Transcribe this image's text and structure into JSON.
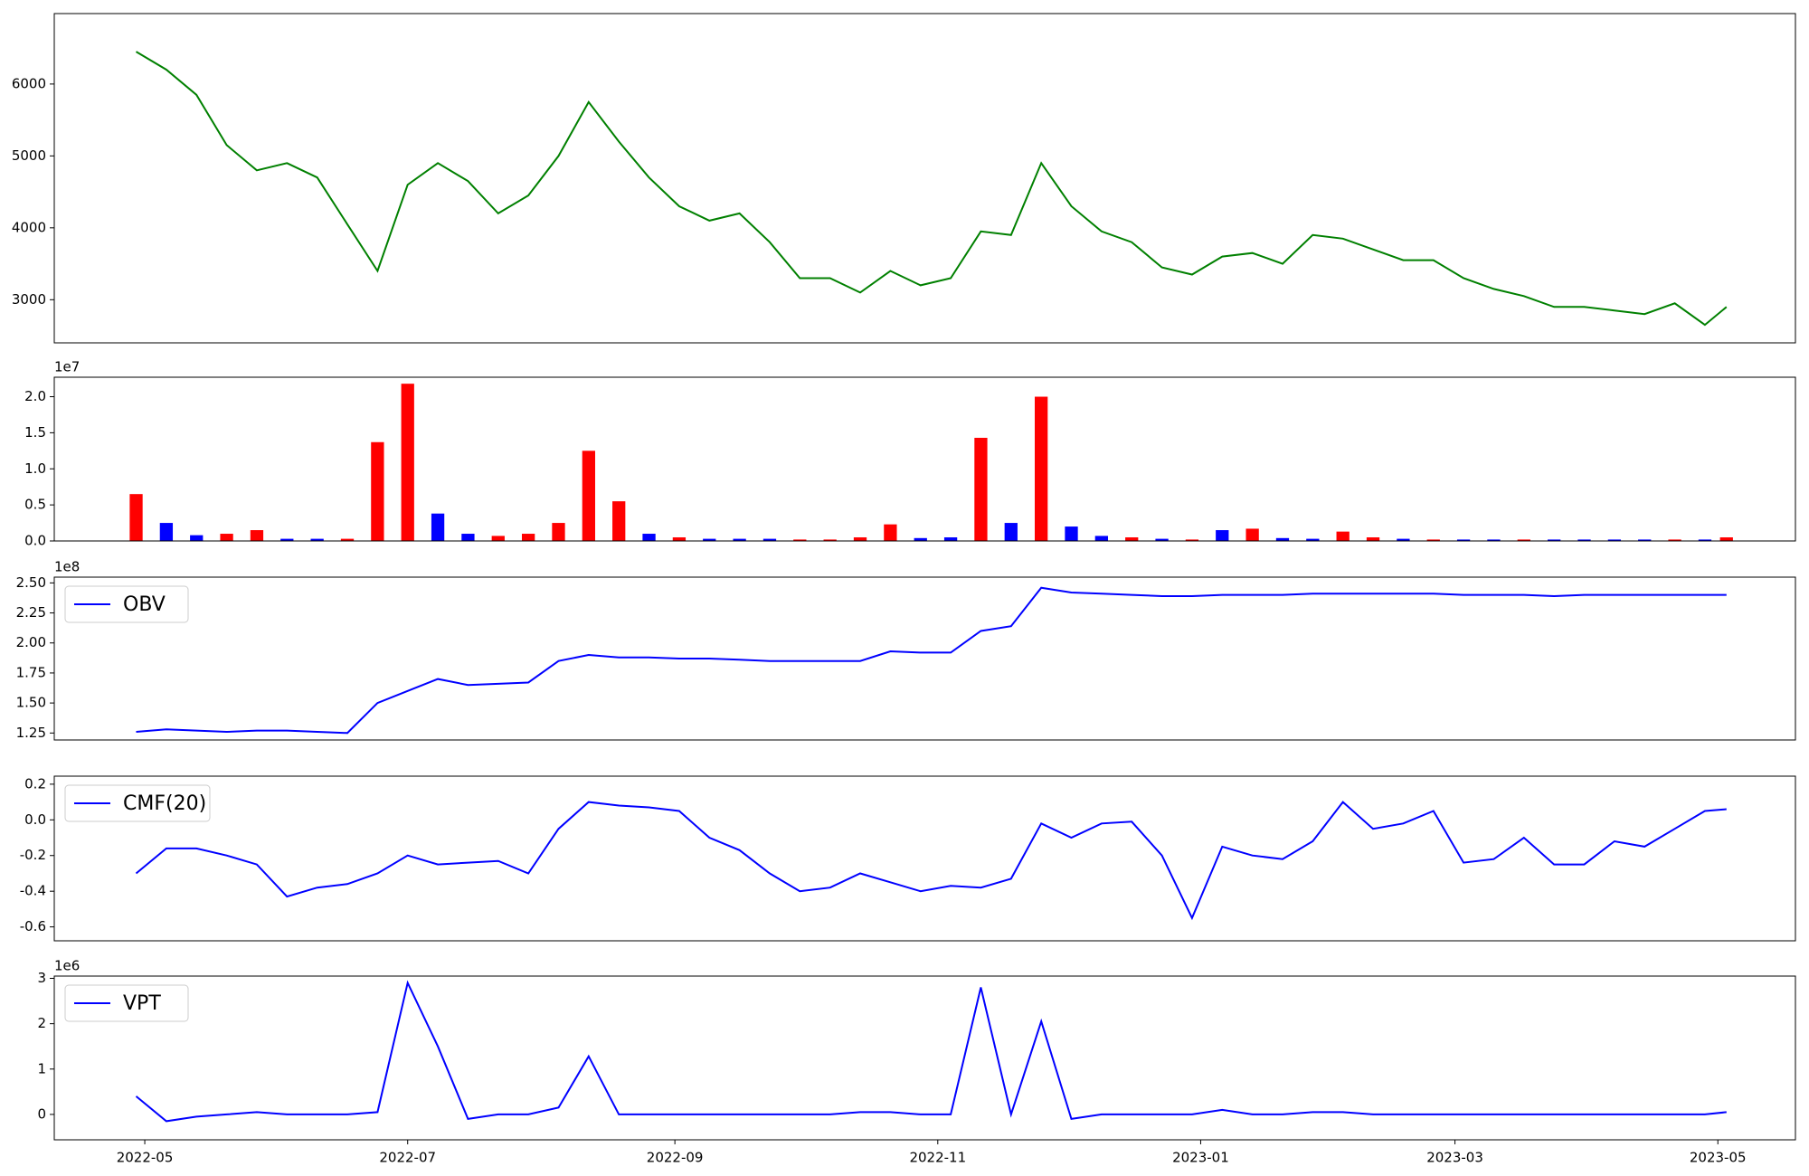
{
  "chart_data": [
    {
      "type": "line",
      "x": [
        "2022-04-29",
        "2022-05-06",
        "2022-05-13",
        "2022-05-20",
        "2022-05-27",
        "2022-06-03",
        "2022-06-10",
        "2022-06-17",
        "2022-06-24",
        "2022-07-01",
        "2022-07-08",
        "2022-07-15",
        "2022-07-22",
        "2022-07-29",
        "2022-08-05",
        "2022-08-12",
        "2022-08-19",
        "2022-08-26",
        "2022-09-02",
        "2022-09-09",
        "2022-09-16",
        "2022-09-23",
        "2022-09-30",
        "2022-10-07",
        "2022-10-14",
        "2022-10-21",
        "2022-10-28",
        "2022-11-04",
        "2022-11-11",
        "2022-11-18",
        "2022-11-25",
        "2022-12-02",
        "2022-12-09",
        "2022-12-16",
        "2022-12-23",
        "2022-12-30",
        "2023-01-06",
        "2023-01-13",
        "2023-01-20",
        "2023-01-27",
        "2023-02-03",
        "2023-02-10",
        "2023-02-17",
        "2023-02-24",
        "2023-03-03",
        "2023-03-10",
        "2023-03-17",
        "2023-03-24",
        "2023-03-31",
        "2023-04-07",
        "2023-04-14",
        "2023-04-21",
        "2023-04-28",
        "2023-05-03"
      ],
      "xlim": [
        "2022-04-10",
        "2023-05-19"
      ],
      "series": [
        {
          "color": "#008000",
          "values": [
            6450,
            6200,
            5850,
            5150,
            4800,
            4900,
            4700,
            4050,
            3400,
            4600,
            4900,
            4650,
            4200,
            4450,
            5000,
            5750,
            5200,
            4700,
            4300,
            4100,
            4200,
            3800,
            3300,
            3300,
            3100,
            3400,
            3200,
            3300,
            3950,
            3900,
            4900,
            4300,
            3950,
            3800,
            3450,
            3350,
            3600,
            3650,
            3500,
            3900,
            3850,
            3700,
            3550,
            3550,
            3300,
            3150,
            3050,
            2900,
            2900,
            2850,
            2800,
            2950,
            2650,
            2900
          ]
        }
      ],
      "ylim": [
        2400,
        6980
      ],
      "yticks": [
        3000,
        4000,
        5000,
        6000
      ]
    },
    {
      "type": "bar",
      "offset_label": "1e7",
      "values": [
        0.65,
        0.25,
        0.08,
        0.1,
        0.15,
        0.03,
        0.03,
        0.03,
        1.37,
        2.18,
        0.38,
        0.1,
        0.07,
        0.1,
        0.25,
        1.25,
        0.55,
        0.1,
        0.05,
        0.03,
        0.03,
        0.03,
        0.02,
        0.02,
        0.05,
        0.23,
        0.04,
        0.05,
        1.43,
        0.25,
        2.0,
        0.2,
        0.07,
        0.05,
        0.03,
        0.02,
        0.15,
        0.17,
        0.04,
        0.03,
        0.13,
        0.05,
        0.03,
        0.02,
        0.02,
        0.02,
        0.02,
        0.02,
        0.02,
        0.02,
        0.02,
        0.02,
        0.02,
        0.05
      ],
      "colors": [
        "red",
        "blue",
        "blue",
        "red",
        "red",
        "blue",
        "blue",
        "red",
        "red",
        "red",
        "blue",
        "blue",
        "red",
        "red",
        "red",
        "red",
        "red",
        "blue",
        "red",
        "blue",
        "blue",
        "blue",
        "red",
        "red",
        "red",
        "red",
        "blue",
        "blue",
        "red",
        "blue",
        "red",
        "blue",
        "blue",
        "red",
        "blue",
        "red",
        "blue",
        "red",
        "blue",
        "blue",
        "red",
        "red",
        "blue",
        "red",
        "blue",
        "blue",
        "red",
        "blue",
        "blue",
        "blue",
        "blue",
        "red",
        "blue",
        "red"
      ],
      "ylim": [
        0,
        2.27
      ],
      "yticks": [
        {
          "value": 0,
          "label": "0.0"
        },
        0.5,
        {
          "value": 1,
          "label": "1.0"
        },
        1.5,
        {
          "value": 2,
          "label": "2.0"
        }
      ]
    },
    {
      "type": "line",
      "offset_label": "1e8",
      "legend": "upper left",
      "series": [
        {
          "name": "OBV",
          "color": "#0000ff",
          "values": [
            1.26,
            1.28,
            1.27,
            1.26,
            1.27,
            1.27,
            1.26,
            1.25,
            1.5,
            1.6,
            1.7,
            1.65,
            1.66,
            1.67,
            1.85,
            1.9,
            1.88,
            1.88,
            1.87,
            1.87,
            1.86,
            1.85,
            1.85,
            1.85,
            1.85,
            1.93,
            1.92,
            1.92,
            2.1,
            2.14,
            2.46,
            2.42,
            2.41,
            2.4,
            2.39,
            2.39,
            2.4,
            2.4,
            2.4,
            2.41,
            2.41,
            2.41,
            2.41,
            2.41,
            2.4,
            2.4,
            2.4,
            2.39,
            2.4,
            2.4,
            2.4,
            2.4,
            2.4,
            2.4
          ]
        }
      ],
      "ylim": [
        1.192,
        2.548
      ],
      "yticks": [
        1.25,
        {
          "value": 1.5,
          "label": "1.50"
        },
        1.75,
        {
          "value": 2,
          "label": "2.00"
        },
        2.25,
        {
          "value": 2.5,
          "label": "2.50"
        }
      ]
    },
    {
      "type": "line",
      "legend": "upper left",
      "series": [
        {
          "name": "CMF(20)",
          "color": "#0000ff",
          "values": [
            -0.3,
            -0.16,
            -0.16,
            -0.2,
            -0.25,
            -0.43,
            -0.38,
            -0.36,
            -0.3,
            -0.2,
            -0.25,
            -0.24,
            -0.23,
            -0.3,
            -0.05,
            0.1,
            0.08,
            0.07,
            0.05,
            -0.1,
            -0.17,
            -0.3,
            -0.4,
            -0.38,
            -0.3,
            -0.35,
            -0.4,
            -0.37,
            -0.38,
            -0.33,
            -0.02,
            -0.1,
            -0.02,
            -0.01,
            -0.2,
            -0.55,
            -0.15,
            -0.2,
            -0.22,
            -0.12,
            0.1,
            -0.05,
            -0.02,
            0.05,
            -0.24,
            -0.22,
            -0.1,
            -0.25,
            -0.25,
            -0.12,
            -0.15,
            -0.05,
            0.05,
            0.06
          ]
        }
      ],
      "ylim": [
        -0.678,
        0.245
      ],
      "yticks": [
        -0.6,
        -0.4,
        -0.2,
        {
          "value": 0,
          "label": "0.0"
        },
        0.2
      ]
    },
    {
      "type": "line",
      "offset_label": "1e6",
      "legend": "upper left",
      "series": [
        {
          "name": "VPT",
          "color": "#0000ff",
          "values": [
            0.4,
            -0.15,
            -0.05,
            0.0,
            0.05,
            0.0,
            0.0,
            0.0,
            0.05,
            2.9,
            1.5,
            -0.1,
            0.0,
            0.0,
            0.15,
            1.28,
            0.0,
            0.0,
            0.0,
            0.0,
            0.0,
            0.0,
            0.0,
            0.0,
            0.05,
            0.05,
            0.0,
            0.0,
            2.8,
            0.0,
            2.05,
            -0.1,
            0.0,
            0.0,
            0.0,
            0.0,
            0.1,
            0.0,
            0.0,
            0.05,
            0.05,
            0.0,
            0.0,
            0.0,
            0.0,
            0.0,
            0.0,
            0.0,
            0.0,
            0.0,
            0.0,
            0.0,
            0.0,
            0.05
          ]
        }
      ],
      "ylim": [
        -0.56,
        3.05
      ],
      "yticks": [
        0,
        1,
        2,
        3
      ],
      "xticks": [
        "2022-05",
        "2022-07",
        "2022-09",
        "2022-11",
        "2023-01",
        "2023-03",
        "2023-05"
      ]
    }
  ]
}
